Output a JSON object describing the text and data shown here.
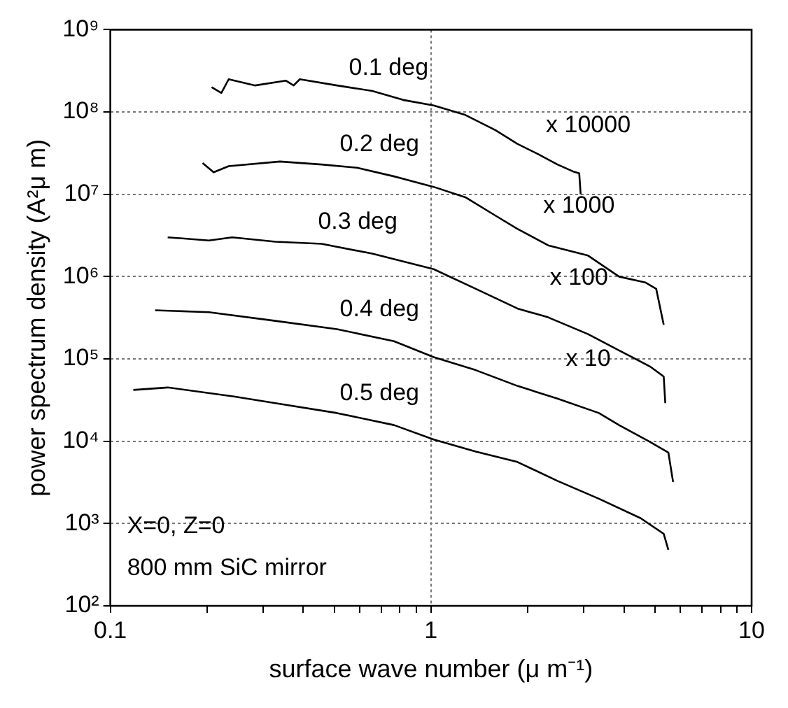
{
  "chart_data": {
    "type": "line",
    "xlabel": "surface wave number (μ m⁻¹)",
    "ylabel": "power spectrum density (A²μ m)",
    "log": "xy",
    "grid": true,
    "marker": "none",
    "line_style": "solid",
    "xlim": [
      0.1,
      10
    ],
    "ylim": [
      100,
      1000000000
    ],
    "xticks": [
      0.1,
      {
        "value": 0.2,
        "label": null
      },
      {
        "value": 0.3,
        "label": null
      },
      {
        "value": 0.4,
        "label": null
      },
      {
        "value": 0.5,
        "label": null
      },
      {
        "value": 0.6,
        "label": null
      },
      {
        "value": 0.7,
        "label": null
      },
      {
        "value": 0.8,
        "label": null
      },
      {
        "value": 0.9,
        "label": null
      },
      1,
      {
        "value": 2,
        "label": null
      },
      {
        "value": 3,
        "label": null
      },
      {
        "value": 4,
        "label": null
      },
      {
        "value": 5,
        "label": null
      },
      {
        "value": 6,
        "label": null
      },
      {
        "value": 7,
        "label": null
      },
      {
        "value": 8,
        "label": null
      },
      {
        "value": 9,
        "label": null
      },
      10
    ],
    "yticks": [
      {
        "value": 100,
        "label": "10²"
      },
      {
        "value": 1000,
        "label": "10³"
      },
      {
        "value": 10000,
        "label": "10⁴"
      },
      {
        "value": 100000,
        "label": "10⁵"
      },
      {
        "value": 1000000,
        "label": "10⁶"
      },
      {
        "value": 10000000,
        "label": "10⁷"
      },
      {
        "value": 100000000,
        "label": "10⁸"
      },
      {
        "value": 1000000000,
        "label": "10⁹"
      }
    ],
    "series": [
      {
        "name": "0.1 deg",
        "color": "#000000",
        "x": [
          0.207,
          0.222,
          0.234,
          0.283,
          0.353,
          0.373,
          0.39,
          0.509,
          0.656,
          0.819,
          1.02,
          1.28,
          1.59,
          1.86,
          2.15,
          2.48,
          2.77,
          2.9,
          2.93
        ],
        "values": [
          200000000.0,
          170000000.0,
          250000000.0,
          210000000.0,
          240000000.0,
          210000000.0,
          250000000.0,
          210000000.0,
          180000000.0,
          140000000.0,
          120000000.0,
          92000000.0,
          60000000.0,
          41000000.0,
          31000000.0,
          23000000.0,
          19000000.0,
          18000000.0,
          10000000.0
        ]
      },
      {
        "name": "0.2 deg",
        "color": "#000000",
        "x": [
          0.194,
          0.21,
          0.234,
          0.338,
          0.456,
          0.588,
          0.767,
          1.02,
          1.28,
          1.59,
          1.86,
          2.32,
          3.09,
          3.86,
          4.66,
          5.04,
          5.32
        ],
        "values": [
          24000000.0,
          18500000.0,
          22000000.0,
          25000000.0,
          23000000.0,
          21000000.0,
          16500000.0,
          12300000.0,
          9200000.0,
          5500000.0,
          3800000.0,
          2400000.0,
          1800000.0,
          1000000.0,
          850000.0,
          710000.0,
          260000.0
        ]
      },
      {
        "name": "0.3 deg",
        "color": "#000000",
        "x": [
          0.151,
          0.203,
          0.24,
          0.327,
          0.456,
          0.656,
          1.02,
          1.38,
          1.86,
          2.32,
          3.09,
          3.86,
          4.82,
          5.32,
          5.38
        ],
        "values": [
          3000000.0,
          2750000.0,
          3000000.0,
          2650000.0,
          2500000.0,
          1900000.0,
          1230000.0,
          710000.0,
          410000.0,
          320000.0,
          200000.0,
          127000.0,
          81000.0,
          61000.0,
          29000.0
        ]
      },
      {
        "name": "0.4 deg",
        "color": "#000000",
        "x": [
          0.138,
          0.203,
          0.327,
          0.509,
          0.767,
          1.02,
          1.38,
          1.86,
          2.48,
          3.34,
          3.86,
          4.82,
          5.5,
          5.69
        ],
        "values": [
          390000.0,
          370000.0,
          290000.0,
          230000.0,
          164000.0,
          105000.0,
          73000.0,
          47000.0,
          33000.0,
          22000.0,
          15700.0,
          9800.0,
          7300.0,
          3200.0
        ]
      },
      {
        "name": "0.5 deg",
        "color": "#000000",
        "x": [
          0.118,
          0.151,
          0.243,
          0.327,
          0.509,
          0.767,
          1.02,
          1.38,
          1.86,
          2.48,
          3.34,
          4.51,
          5.32,
          5.5
        ],
        "values": [
          42000.0,
          45000.0,
          35000.0,
          29000.0,
          22000.0,
          15700.0,
          10500.0,
          7500.0,
          5600.0,
          3300.0,
          2000.0,
          1160.0,
          750,
          480
        ]
      }
    ],
    "annotations": [
      "x 10000",
      "x 1000",
      "x 100",
      "x 10",
      "X=0, Z=0",
      "800 mm SiC mirror"
    ]
  }
}
